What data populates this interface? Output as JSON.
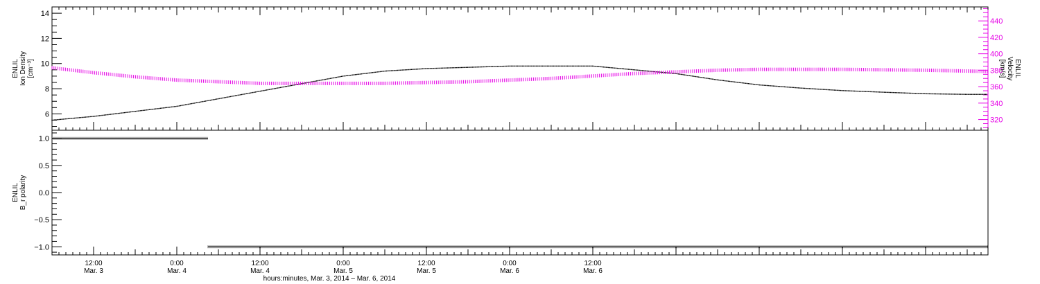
{
  "chart_data": [
    {
      "type": "line",
      "panel": "top",
      "ylabel_lines": [
        "ENLIL",
        "Ion Density",
        "[cm⁻³]"
      ],
      "ylim": [
        4.7,
        14.5
      ],
      "yticks": [
        6,
        8,
        10,
        12,
        14
      ],
      "right_axis": {
        "ylabel_lines": [
          "ENLIL",
          "Velocity",
          "[km/s]"
        ],
        "ylim": [
          307,
          457
        ],
        "yticks": [
          320,
          340,
          360,
          380,
          400,
          420,
          440
        ],
        "color": "#e600e6"
      },
      "x_unit": "hours since Mar. 3, 2014 00:00",
      "series": [
        {
          "axis": "left",
          "color": "#000000",
          "points": [
            [
              6,
              5.5
            ],
            [
              12,
              5.8
            ],
            [
              18,
              6.2
            ],
            [
              24,
              6.6
            ],
            [
              30,
              7.2
            ],
            [
              36,
              7.8
            ],
            [
              42,
              8.4
            ],
            [
              48,
              9.0
            ],
            [
              54,
              9.4
            ],
            [
              60,
              9.6
            ],
            [
              66,
              9.7
            ],
            [
              72,
              9.8
            ],
            [
              78,
              9.8
            ],
            [
              84,
              9.8
            ],
            [
              90,
              9.5
            ],
            [
              96,
              9.2
            ],
            [
              102,
              8.7
            ],
            [
              108,
              8.3
            ],
            [
              114,
              8.05
            ],
            [
              120,
              7.85
            ],
            [
              126,
              7.72
            ],
            [
              132,
              7.6
            ],
            [
              138,
              7.55
            ],
            [
              141,
              7.55
            ]
          ]
        },
        {
          "axis": "right",
          "color": "#e600e6",
          "points": [
            [
              6,
              383
            ],
            [
              12,
              377
            ],
            [
              18,
              372
            ],
            [
              24,
              368
            ],
            [
              30,
              366
            ],
            [
              36,
              364
            ],
            [
              42,
              364
            ],
            [
              48,
              364
            ],
            [
              54,
              364
            ],
            [
              60,
              365
            ],
            [
              66,
              366
            ],
            [
              72,
              368
            ],
            [
              78,
              370
            ],
            [
              84,
              373
            ],
            [
              90,
              376
            ],
            [
              96,
              378
            ],
            [
              102,
              380
            ],
            [
              108,
              381
            ],
            [
              114,
              381
            ],
            [
              120,
              381
            ],
            [
              126,
              380.5
            ],
            [
              132,
              380
            ],
            [
              138,
              379
            ],
            [
              141,
              378.5
            ]
          ]
        }
      ]
    },
    {
      "type": "scatter",
      "panel": "bottom",
      "ylabel_lines": [
        "ENLIL",
        "B_r polarity"
      ],
      "ylim": [
        -1.15,
        1.15
      ],
      "yticks": [
        1.0,
        0.5,
        0.0,
        -0.5,
        -1.0
      ],
      "ytick_labels": [
        "1.0",
        "0.5",
        "0.0",
        "−0.5",
        "−1.0"
      ],
      "series": [
        {
          "color": "#000000",
          "segments": [
            {
              "x": [
                6,
                28.5
              ],
              "y": 1.0
            },
            {
              "x": [
                28.5,
                141
              ],
              "y": -1.0
            }
          ]
        }
      ]
    }
  ],
  "xaxis": {
    "xlim": [
      6,
      141
    ],
    "ticks": [
      {
        "x": 12,
        "time": "12:00",
        "date": "Mar. 3"
      },
      {
        "x": 24,
        "time": "0:00",
        "date": "Mar. 4"
      },
      {
        "x": 36,
        "time": "12:00",
        "date": "Mar. 4"
      },
      {
        "x": 48,
        "time": "0:00",
        "date": "Mar. 5"
      },
      {
        "x": 60,
        "time": "12:00",
        "date": "Mar. 5"
      },
      {
        "x": 72,
        "time": "0:00",
        "date": "Mar. 6"
      },
      {
        "x": 84,
        "time": "12:00",
        "date": "Mar. 6"
      }
    ],
    "title": "hours:minutes, Mar.  3, 2014 – Mar.  6, 2014"
  }
}
